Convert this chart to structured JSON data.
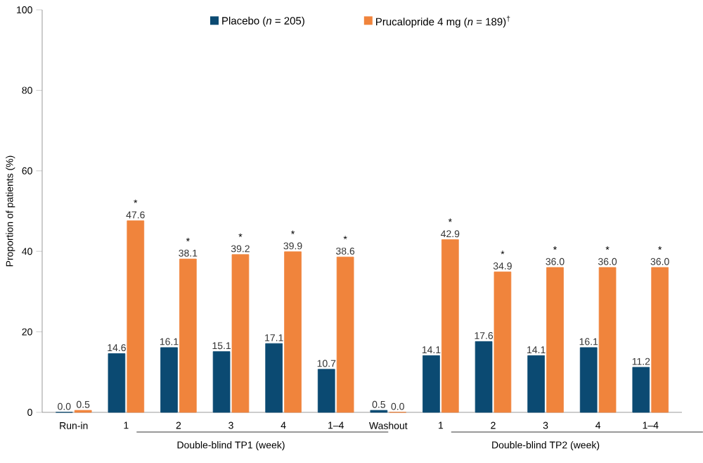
{
  "chart_data": {
    "type": "bar",
    "ylabel": "Proportion of patients (%)",
    "categories": [
      "Run-in",
      "1",
      "2",
      "3",
      "4",
      "1–4",
      "Washout",
      "1",
      "2",
      "3",
      "4",
      "1–4"
    ],
    "series": [
      {
        "name": "Placebo (*n* = 205)",
        "color": "#0b4a72",
        "values": [
          0.0,
          14.6,
          16.1,
          15.1,
          17.1,
          10.7,
          0.5,
          14.1,
          17.6,
          14.1,
          16.1,
          11.2
        ],
        "value_labels": [
          "0.0",
          "14.6",
          "16.1",
          "15.1",
          "17.1",
          "10.7",
          "0.5",
          "14.1",
          "17.6",
          "14.1",
          "16.1",
          "11.2"
        ]
      },
      {
        "name": "Prucalopride 4 mg (*n* = 189)$^{†}$",
        "color": "#f0843c",
        "values": [
          0.5,
          47.6,
          38.1,
          39.2,
          39.9,
          38.6,
          0.0,
          42.9,
          34.9,
          36.0,
          36.0,
          36.0
        ],
        "value_labels": [
          "0.5",
          "47.6",
          "38.1",
          "39.2",
          "39.9",
          "38.6",
          "0.0",
          "42.9",
          "34.9",
          "36.0",
          "36.0",
          "36.0"
        ]
      }
    ],
    "ylim": [
      0,
      100
    ],
    "yticks": [
      0,
      20,
      40,
      60,
      80,
      100
    ],
    "legend": "top",
    "grid": false,
    "annotations": [
      "Double-blind TP1 (week)",
      "Double-blind TP2 (week)",
      "*",
      "*",
      "*",
      "*",
      "*",
      "*",
      "*",
      "*",
      "*",
      "*"
    ]
  }
}
